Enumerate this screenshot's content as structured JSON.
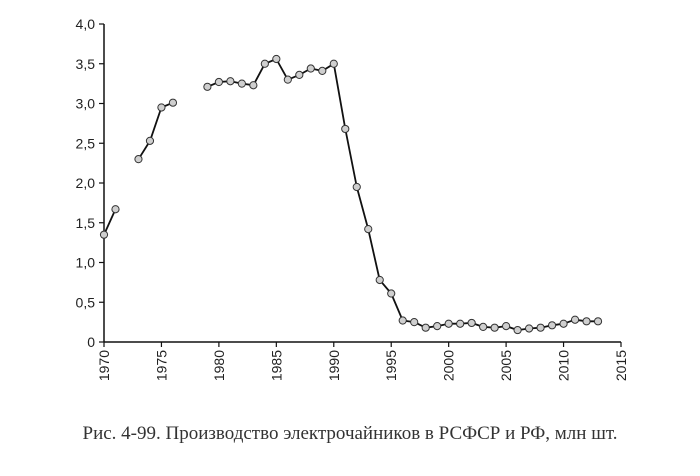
{
  "caption": "Рис. 4-99. Производство электрочайников в РСФСР и РФ, млн шт.",
  "chart_data": {
    "type": "line",
    "title": "",
    "xlabel": "",
    "ylabel": "",
    "xlim": [
      1970,
      2015
    ],
    "ylim": [
      0,
      4
    ],
    "x_ticks": [
      1970,
      1975,
      1980,
      1985,
      1990,
      1995,
      2000,
      2005,
      2010,
      2015
    ],
    "x_tick_labels": [
      "1970",
      "1975",
      "1980",
      "1985",
      "1990",
      "1995",
      "2000",
      "2005",
      "2010",
      "2015"
    ],
    "y_ticks": [
      0,
      0.5,
      1,
      1.5,
      2,
      2.5,
      3,
      3.5,
      4
    ],
    "y_tick_labels": [
      "0",
      "0,5",
      "1,0",
      "1,5",
      "2,0",
      "2,5",
      "3,0",
      "3,5",
      "4,0"
    ],
    "grid": false,
    "colors": {
      "line": "#111111",
      "marker_fill": "#cfcfcf",
      "marker_stroke": "#333333",
      "axis": "#111111"
    },
    "segments": [
      {
        "x": [
          1970,
          1971
        ],
        "y": [
          1.35,
          1.67
        ]
      },
      {
        "x": [
          1973,
          1974,
          1975,
          1976
        ],
        "y": [
          2.3,
          2.53,
          2.95,
          3.01
        ]
      },
      {
        "x": [
          1979,
          1980,
          1981,
          1982,
          1983,
          1984,
          1985,
          1986,
          1987,
          1988,
          1989,
          1990,
          1991,
          1992,
          1993,
          1994,
          1995,
          1996,
          1997,
          1998,
          1999,
          2000,
          2001,
          2002,
          2003,
          2004,
          2005,
          2006,
          2007,
          2008,
          2009,
          2010,
          2011,
          2012,
          2013
        ],
        "y": [
          3.21,
          3.27,
          3.28,
          3.25,
          3.23,
          3.5,
          3.56,
          3.3,
          3.36,
          3.44,
          3.41,
          3.5,
          2.68,
          1.95,
          1.42,
          0.78,
          0.61,
          0.27,
          0.25,
          0.18,
          0.2,
          0.23,
          0.23,
          0.24,
          0.19,
          0.18,
          0.2,
          0.15,
          0.17,
          0.18,
          0.21,
          0.23,
          0.28,
          0.26,
          0.26
        ]
      }
    ]
  }
}
